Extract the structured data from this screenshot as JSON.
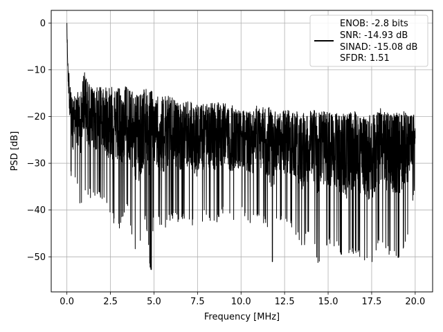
{
  "chart_data": {
    "type": "line",
    "title": "",
    "xlabel": "Frequency [MHz]",
    "ylabel": "PSD [dB]",
    "xlim": [
      -0.9,
      21.0
    ],
    "ylim": [
      -57.5,
      2.7
    ],
    "xticks": [
      0.0,
      2.5,
      5.0,
      7.5,
      10.0,
      12.5,
      15.0,
      17.5,
      20.0
    ],
    "xtick_labels": [
      "0.0",
      "2.5",
      "5.0",
      "7.5",
      "10.0",
      "12.5",
      "15.0",
      "17.5",
      "20.0"
    ],
    "yticks": [
      0,
      -10,
      -20,
      -30,
      -40,
      -50
    ],
    "ytick_labels": [
      "0",
      "−10",
      "−20",
      "−30",
      "−40",
      "−50"
    ],
    "grid": true,
    "legend_position": "top-right",
    "legend": {
      "lines": [
        "ENOB: -2.8 bits",
        "SNR: -14.93 dB",
        "SINAD: -15.08 dB",
        "SFDR: 1.51"
      ]
    },
    "series": [
      {
        "color": "#000000",
        "x": [
          0.0,
          0.04,
          0.08,
          0.12,
          0.16,
          0.2,
          0.3,
          0.5,
          0.8,
          1.0,
          1.5,
          2.0,
          2.5,
          3.0,
          3.5,
          4.0,
          4.5,
          4.85,
          5.0,
          5.5,
          6.0,
          6.5,
          7.0,
          7.5,
          8.0,
          8.5,
          9.0,
          9.5,
          10.0,
          10.5,
          11.0,
          11.5,
          11.8,
          12.0,
          12.5,
          13.0,
          13.5,
          14.0,
          14.5,
          15.0,
          15.5,
          16.0,
          16.5,
          17.0,
          17.5,
          18.0,
          18.5,
          19.0,
          19.5,
          20.0
        ],
        "y_upper": [
          0.0,
          -5.0,
          -10.0,
          -9.0,
          -14.0,
          -12.0,
          -16.0,
          -15.0,
          -14.0,
          -10.0,
          -14.0,
          -13.0,
          -13.5,
          -14.0,
          -13.0,
          -15.0,
          -14.0,
          -13.0,
          -16.0,
          -15.0,
          -15.5,
          -17.0,
          -16.0,
          -17.5,
          -17.0,
          -16.5,
          -17.0,
          -17.5,
          -18.0,
          -18.5,
          -17.5,
          -18.0,
          -18.0,
          -18.5,
          -18.0,
          -18.5,
          -19.0,
          -18.0,
          -18.0,
          -18.5,
          -19.0,
          -19.0,
          -18.5,
          -19.5,
          -19.5,
          -18.0,
          -19.0,
          -18.5,
          -19.0,
          -19.5
        ],
        "y_lower": [
          -5.0,
          -12.0,
          -18.0,
          -22.0,
          -26.0,
          -30.0,
          -37.0,
          -33.0,
          -40.0,
          -36.0,
          -38.0,
          -38.0,
          -42.0,
          -44.0,
          -40.0,
          -52.0,
          -42.0,
          -55.0,
          -40.0,
          -45.0,
          -42.0,
          -43.0,
          -42.0,
          -45.0,
          -41.0,
          -44.0,
          -41.0,
          -43.0,
          -41.0,
          -43.0,
          -42.0,
          -44.0,
          -53.0,
          -42.0,
          -43.0,
          -44.0,
          -49.0,
          -44.0,
          -53.0,
          -47.0,
          -48.0,
          -52.0,
          -49.0,
          -51.0,
          -53.0,
          -47.0,
          -50.0,
          -51.0,
          -48.0,
          -35.0
        ]
      }
    ]
  }
}
